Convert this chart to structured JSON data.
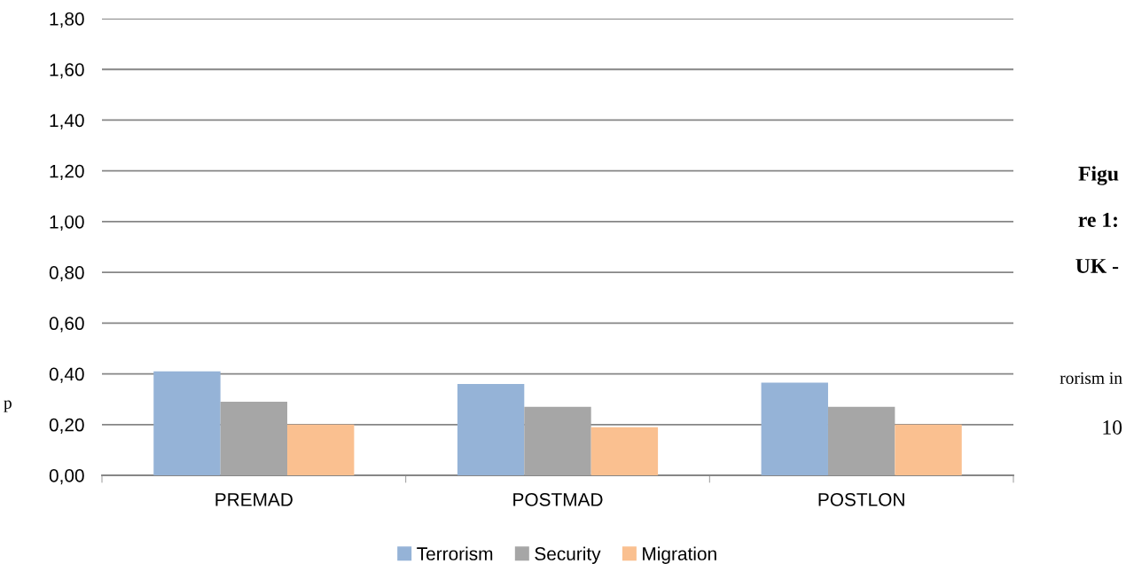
{
  "chart_data": {
    "type": "bar",
    "categories": [
      "PREMAD",
      "POSTMAD",
      "POSTLON"
    ],
    "series": [
      {
        "name": "Terrorism",
        "color": "#95b3d7",
        "values": [
          0.41,
          0.36,
          0.365
        ]
      },
      {
        "name": "Security",
        "color": "#a6a6a6",
        "values": [
          0.29,
          0.27,
          0.27
        ]
      },
      {
        "name": "Migration",
        "color": "#fac090",
        "values": [
          0.2,
          0.19,
          0.2
        ]
      }
    ],
    "ylim": [
      0,
      1.8
    ],
    "yticks": [
      {
        "value": 0,
        "label": "0,00"
      },
      {
        "value": 0.2,
        "label": "0,20"
      },
      {
        "value": 0.4,
        "label": "0,40"
      },
      {
        "value": 0.6,
        "label": "0,60"
      },
      {
        "value": 0.8,
        "label": "0,80"
      },
      {
        "value": 1.0,
        "label": "1,00"
      },
      {
        "value": 1.2,
        "label": "1,20"
      },
      {
        "value": 1.4,
        "label": "1,40"
      },
      {
        "value": 1.6,
        "label": "1,60"
      },
      {
        "value": 1.8,
        "label": "1,80"
      }
    ],
    "grid": "y",
    "legend": "bottom",
    "annotations": [
      "Figu",
      "re 1:",
      "UK -",
      "rorism in",
      "10",
      "p"
    ]
  }
}
